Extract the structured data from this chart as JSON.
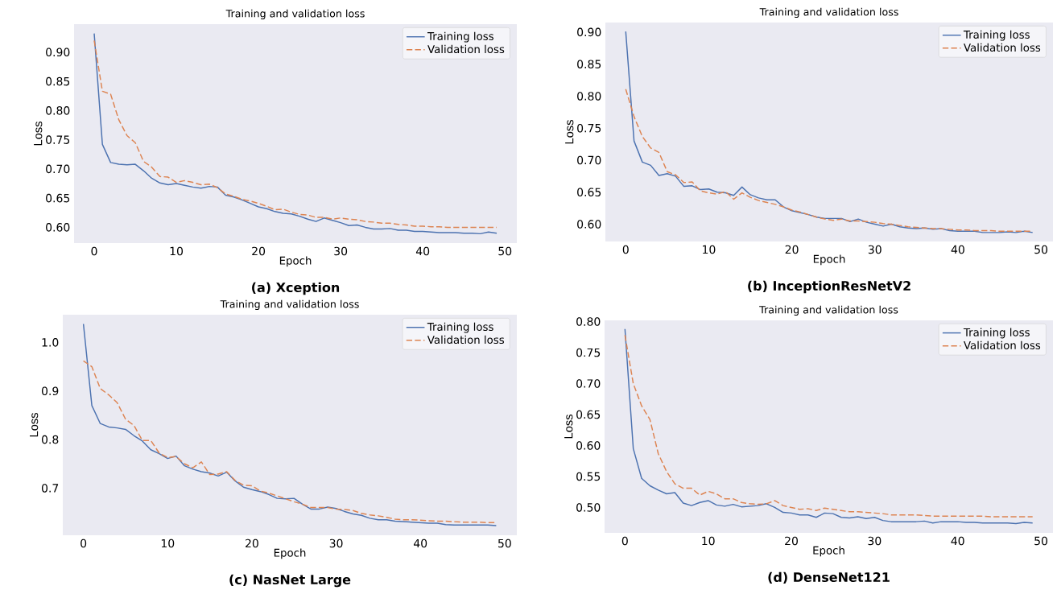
{
  "chart_data": [
    {
      "type": "line",
      "title": "Training and validation loss",
      "xlabel": "Epoch",
      "ylabel": "Loss",
      "legend": "top right",
      "annotations": [
        "(a) Xception"
      ],
      "x": [
        0,
        1,
        2,
        3,
        4,
        5,
        6,
        7,
        8,
        9,
        10,
        11,
        12,
        13,
        14,
        15,
        16,
        17,
        18,
        19,
        20,
        21,
        22,
        23,
        24,
        25,
        26,
        27,
        28,
        29,
        30,
        31,
        32,
        33,
        34,
        35,
        36,
        37,
        38,
        39,
        40,
        41,
        42,
        43,
        44,
        45,
        46,
        47,
        48,
        49
      ],
      "xlim": [
        -2.45,
        51.45
      ],
      "xticks": [
        0,
        10,
        20,
        30,
        40,
        50
      ],
      "ylim": [
        0.573,
        0.948
      ],
      "yticks": [
        {
          "value": 0.6,
          "label": "0.60"
        },
        {
          "value": 0.65,
          "label": "0.65"
        },
        {
          "value": 0.7,
          "label": "0.70"
        },
        {
          "value": 0.75,
          "label": "0.75"
        },
        {
          "value": 0.8,
          "label": "0.80"
        },
        {
          "value": 0.85,
          "label": "0.85"
        },
        {
          "value": 0.9,
          "label": "0.90"
        }
      ],
      "series": [
        {
          "name": "Training loss",
          "color": "#4c72b0",
          "line_style": "solid",
          "values": [
            0.932,
            0.742,
            0.711,
            0.708,
            0.707,
            0.708,
            0.697,
            0.684,
            0.676,
            0.673,
            0.675,
            0.672,
            0.669,
            0.667,
            0.67,
            0.669,
            0.655,
            0.652,
            0.647,
            0.641,
            0.635,
            0.632,
            0.627,
            0.624,
            0.623,
            0.619,
            0.614,
            0.61,
            0.616,
            0.612,
            0.608,
            0.603,
            0.604,
            0.6,
            0.597,
            0.597,
            0.598,
            0.595,
            0.595,
            0.593,
            0.593,
            0.592,
            0.591,
            0.591,
            0.591,
            0.59,
            0.59,
            0.589,
            0.592,
            0.59
          ]
        },
        {
          "name": "Validation loss",
          "color": "#dd8452",
          "line_style": "dashed",
          "values": [
            0.92,
            0.833,
            0.828,
            0.784,
            0.757,
            0.745,
            0.713,
            0.703,
            0.687,
            0.686,
            0.677,
            0.68,
            0.677,
            0.673,
            0.674,
            0.668,
            0.657,
            0.653,
            0.648,
            0.645,
            0.641,
            0.636,
            0.63,
            0.631,
            0.626,
            0.622,
            0.621,
            0.617,
            0.617,
            0.614,
            0.616,
            0.614,
            0.613,
            0.61,
            0.609,
            0.607,
            0.607,
            0.605,
            0.604,
            0.602,
            0.602,
            0.601,
            0.601,
            0.6,
            0.6,
            0.6,
            0.6,
            0.6,
            0.6,
            0.6
          ]
        }
      ]
    },
    {
      "type": "line",
      "title": "Training and validation loss",
      "xlabel": "Epoch",
      "ylabel": "Loss",
      "legend": "top right",
      "annotations": [
        "(b) InceptionResNetV2"
      ],
      "x": [
        0,
        1,
        2,
        3,
        4,
        5,
        6,
        7,
        8,
        9,
        10,
        11,
        12,
        13,
        14,
        15,
        16,
        17,
        18,
        19,
        20,
        21,
        22,
        23,
        24,
        25,
        26,
        27,
        28,
        29,
        30,
        31,
        32,
        33,
        34,
        35,
        36,
        37,
        38,
        39,
        40,
        41,
        42,
        43,
        44,
        45,
        46,
        47,
        48,
        49
      ],
      "xlim": [
        -2.45,
        51.45
      ],
      "xticks": [
        0,
        10,
        20,
        30,
        40,
        50
      ],
      "ylim": [
        0.573,
        0.915
      ],
      "yticks": [
        {
          "value": 0.6,
          "label": "0.60"
        },
        {
          "value": 0.65,
          "label": "0.65"
        },
        {
          "value": 0.7,
          "label": "0.70"
        },
        {
          "value": 0.75,
          "label": "0.75"
        },
        {
          "value": 0.8,
          "label": "0.80"
        },
        {
          "value": 0.85,
          "label": "0.85"
        },
        {
          "value": 0.9,
          "label": "0.90"
        }
      ],
      "series": [
        {
          "name": "Training loss",
          "color": "#4c72b0",
          "line_style": "solid",
          "values": [
            0.901,
            0.73,
            0.697,
            0.692,
            0.676,
            0.679,
            0.675,
            0.659,
            0.66,
            0.654,
            0.655,
            0.65,
            0.649,
            0.645,
            0.658,
            0.646,
            0.641,
            0.638,
            0.638,
            0.627,
            0.621,
            0.618,
            0.615,
            0.611,
            0.609,
            0.609,
            0.609,
            0.604,
            0.608,
            0.603,
            0.6,
            0.597,
            0.6,
            0.596,
            0.594,
            0.593,
            0.594,
            0.592,
            0.593,
            0.59,
            0.589,
            0.589,
            0.589,
            0.587,
            0.587,
            0.587,
            0.588,
            0.587,
            0.589,
            0.587
          ]
        },
        {
          "name": "Validation loss",
          "color": "#dd8452",
          "line_style": "dashed",
          "values": [
            0.811,
            0.768,
            0.737,
            0.719,
            0.712,
            0.682,
            0.677,
            0.665,
            0.666,
            0.652,
            0.649,
            0.647,
            0.651,
            0.639,
            0.649,
            0.642,
            0.637,
            0.634,
            0.631,
            0.627,
            0.622,
            0.619,
            0.615,
            0.611,
            0.608,
            0.606,
            0.608,
            0.605,
            0.605,
            0.604,
            0.603,
            0.601,
            0.6,
            0.598,
            0.596,
            0.595,
            0.594,
            0.593,
            0.593,
            0.592,
            0.591,
            0.591,
            0.59,
            0.59,
            0.59,
            0.589,
            0.589,
            0.589,
            0.589,
            0.589
          ]
        }
      ]
    },
    {
      "type": "line",
      "title": "Training and validation loss",
      "xlabel": "Epoch",
      "ylabel": "Loss",
      "legend": "top right",
      "annotations": [
        "(c) NasNet Large"
      ],
      "x": [
        0,
        1,
        2,
        3,
        4,
        5,
        6,
        7,
        8,
        9,
        10,
        11,
        12,
        13,
        14,
        15,
        16,
        17,
        18,
        19,
        20,
        21,
        22,
        23,
        24,
        25,
        26,
        27,
        28,
        29,
        30,
        31,
        32,
        33,
        34,
        35,
        36,
        37,
        38,
        39,
        40,
        41,
        42,
        43,
        44,
        45,
        46,
        47,
        48,
        49
      ],
      "xlim": [
        -2.45,
        51.45
      ],
      "xticks": [
        0,
        10,
        20,
        30,
        40,
        50
      ],
      "ylim": [
        0.603,
        1.057
      ],
      "yticks": [
        {
          "value": 0.7,
          "label": "0.7"
        },
        {
          "value": 0.8,
          "label": "0.8"
        },
        {
          "value": 0.9,
          "label": "0.9"
        },
        {
          "value": 1.0,
          "label": "1.0"
        }
      ],
      "series": [
        {
          "name": "Training loss",
          "color": "#4c72b0",
          "line_style": "solid",
          "values": [
            1.038,
            0.87,
            0.833,
            0.826,
            0.824,
            0.821,
            0.808,
            0.797,
            0.779,
            0.771,
            0.761,
            0.766,
            0.746,
            0.739,
            0.734,
            0.731,
            0.725,
            0.733,
            0.715,
            0.702,
            0.697,
            0.693,
            0.687,
            0.679,
            0.678,
            0.679,
            0.667,
            0.657,
            0.657,
            0.661,
            0.658,
            0.652,
            0.647,
            0.644,
            0.638,
            0.635,
            0.635,
            0.632,
            0.631,
            0.63,
            0.629,
            0.628,
            0.628,
            0.625,
            0.624,
            0.624,
            0.624,
            0.624,
            0.624,
            0.623
          ]
        },
        {
          "name": "Validation loss",
          "color": "#dd8452",
          "line_style": "dashed",
          "values": [
            0.962,
            0.95,
            0.905,
            0.892,
            0.876,
            0.842,
            0.829,
            0.798,
            0.798,
            0.772,
            0.763,
            0.765,
            0.75,
            0.742,
            0.754,
            0.728,
            0.729,
            0.734,
            0.716,
            0.706,
            0.705,
            0.694,
            0.69,
            0.684,
            0.678,
            0.672,
            0.667,
            0.66,
            0.66,
            0.66,
            0.657,
            0.656,
            0.654,
            0.648,
            0.645,
            0.643,
            0.64,
            0.636,
            0.635,
            0.635,
            0.634,
            0.633,
            0.632,
            0.632,
            0.631,
            0.63,
            0.63,
            0.63,
            0.629,
            0.629
          ]
        }
      ]
    },
    {
      "type": "line",
      "title": "Training and validation loss",
      "xlabel": "Epoch",
      "ylabel": "Loss",
      "legend": "top right",
      "annotations": [
        "(d) DenseNet121"
      ],
      "x": [
        0,
        1,
        2,
        3,
        4,
        5,
        6,
        7,
        8,
        9,
        10,
        11,
        12,
        13,
        14,
        15,
        16,
        17,
        18,
        19,
        20,
        21,
        22,
        23,
        24,
        25,
        26,
        27,
        28,
        29,
        30,
        31,
        32,
        33,
        34,
        35,
        36,
        37,
        38,
        39,
        40,
        41,
        42,
        43,
        44,
        45,
        46,
        47,
        48,
        49
      ],
      "xlim": [
        -2.45,
        51.45
      ],
      "xticks": [
        0,
        10,
        20,
        30,
        40,
        50
      ],
      "ylim": [
        0.459,
        0.802
      ],
      "yticks": [
        {
          "value": 0.5,
          "label": "0.50"
        },
        {
          "value": 0.55,
          "label": "0.55"
        },
        {
          "value": 0.6,
          "label": "0.60"
        },
        {
          "value": 0.65,
          "label": "0.65"
        },
        {
          "value": 0.7,
          "label": "0.70"
        },
        {
          "value": 0.75,
          "label": "0.75"
        },
        {
          "value": 0.8,
          "label": "0.80"
        }
      ],
      "series": [
        {
          "name": "Training loss",
          "color": "#4c72b0",
          "line_style": "solid",
          "values": [
            0.788,
            0.595,
            0.547,
            0.535,
            0.528,
            0.522,
            0.524,
            0.507,
            0.503,
            0.508,
            0.511,
            0.504,
            0.502,
            0.505,
            0.501,
            0.502,
            0.503,
            0.506,
            0.5,
            0.492,
            0.491,
            0.488,
            0.488,
            0.484,
            0.491,
            0.49,
            0.484,
            0.483,
            0.485,
            0.482,
            0.484,
            0.479,
            0.477,
            0.477,
            0.477,
            0.477,
            0.478,
            0.475,
            0.477,
            0.477,
            0.477,
            0.476,
            0.476,
            0.475,
            0.475,
            0.475,
            0.475,
            0.474,
            0.476,
            0.475
          ]
        },
        {
          "name": "Validation loss",
          "color": "#dd8452",
          "line_style": "dashed",
          "values": [
            0.778,
            0.7,
            0.664,
            0.642,
            0.587,
            0.558,
            0.538,
            0.531,
            0.531,
            0.52,
            0.526,
            0.522,
            0.514,
            0.514,
            0.508,
            0.506,
            0.505,
            0.506,
            0.511,
            0.503,
            0.5,
            0.497,
            0.498,
            0.495,
            0.499,
            0.497,
            0.495,
            0.493,
            0.493,
            0.492,
            0.491,
            0.49,
            0.488,
            0.488,
            0.488,
            0.488,
            0.487,
            0.486,
            0.486,
            0.486,
            0.486,
            0.486,
            0.486,
            0.486,
            0.485,
            0.485,
            0.485,
            0.485,
            0.485,
            0.485
          ]
        }
      ]
    }
  ]
}
